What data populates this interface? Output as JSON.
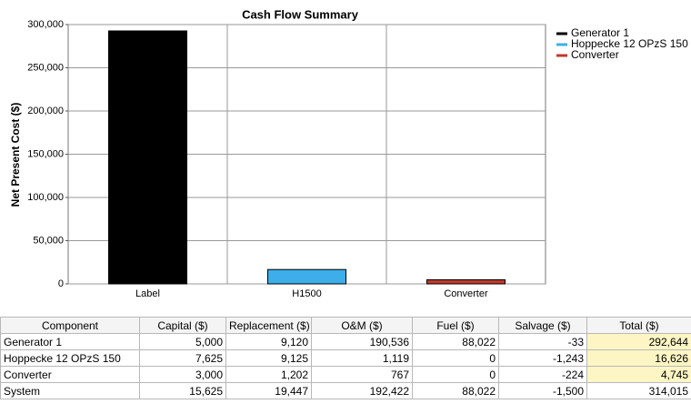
{
  "chart_data": {
    "type": "bar",
    "title": "Cash Flow Summary",
    "y_label": "Net Present Cost ($)",
    "categories": [
      "Label",
      "H1500",
      "Converter"
    ],
    "series": [
      {
        "name": "Generator 1",
        "color": "#000000",
        "values": [
          292644,
          null,
          null
        ]
      },
      {
        "name": "Hoppecke 12 OPzS 150",
        "color": "#3daee9",
        "values": [
          null,
          16626,
          null
        ]
      },
      {
        "name": "Converter",
        "color": "#c0392b",
        "values": [
          null,
          null,
          4745
        ]
      }
    ],
    "ylim": [
      0,
      300000
    ],
    "yticks": [
      0,
      {
        "value": 50000,
        "label": "50,000"
      },
      {
        "value": 100000,
        "label": "100,000"
      },
      {
        "value": 150000,
        "label": "150,000"
      },
      {
        "value": 200000,
        "label": "200,000"
      },
      {
        "value": 250000,
        "label": "250,000"
      },
      {
        "value": 300000,
        "label": "300,000"
      }
    ],
    "grid": true,
    "legend": "right"
  },
  "table": {
    "columns": [
      "Component",
      "Capital ($)",
      "Replacement ($)",
      "O&M ($)",
      "Fuel ($)",
      "Salvage ($)",
      "Total ($)"
    ],
    "rows": [
      [
        "Generator 1",
        "5,000",
        "9,120",
        "190,536",
        "88,022",
        "-33",
        "292,644"
      ],
      [
        "Hoppecke 12 OPzS 150",
        "7,625",
        "9,125",
        "1,119",
        "0",
        "-1,243",
        "16,626"
      ],
      [
        "Converter",
        "3,000",
        "1,202",
        "767",
        "0",
        "-224",
        "4,745"
      ],
      [
        "System",
        "15,625",
        "19,447",
        "192,422",
        "88,022",
        "-1,500",
        "314,015"
      ]
    ],
    "highlight_column": 6,
    "highlight_rows": [
      0,
      1,
      2
    ]
  }
}
